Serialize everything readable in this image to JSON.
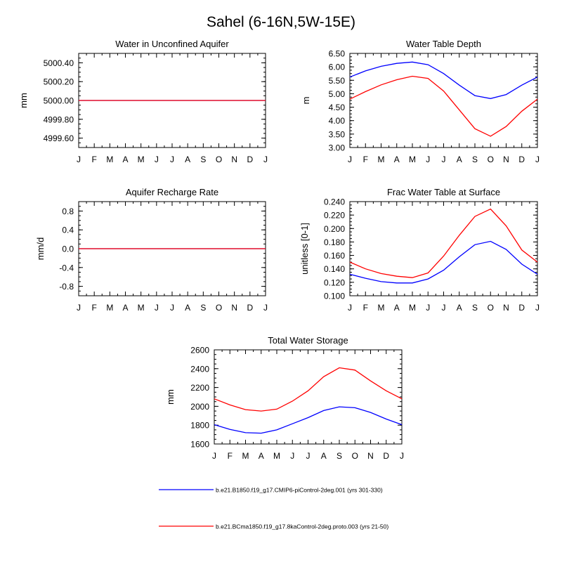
{
  "figure": {
    "title": "Sahel (6-16N,5W-15E)"
  },
  "legend": {
    "placement": "bottom",
    "entries": [
      {
        "label": "b.e21.B1850.f19_g17.CMIP6-piControl-2deg.001 (yrs 301-330)",
        "color": "#0000ff"
      },
      {
        "label": "b.e21.BCma1850.f19_g17.8kaControl-2deg.proto.003 (yrs 21-50)",
        "color": "#ff0000"
      }
    ]
  },
  "chart_data": [
    {
      "type": "line",
      "title": "Water in Unconfined Aquifer",
      "ylabel": "mm",
      "categories": [
        "J",
        "F",
        "M",
        "A",
        "M",
        "J",
        "J",
        "A",
        "S",
        "O",
        "N",
        "D",
        "J"
      ],
      "ylim": [
        4999.5,
        5000.5
      ],
      "yticks": [
        4999.6,
        4999.8,
        5000.0,
        5000.2,
        5000.4
      ],
      "ytick_labels": [
        "4999.60",
        "4999.80",
        "5000.00",
        "5000.20",
        "5000.40"
      ],
      "series": [
        {
          "color": "#0000ff",
          "values": [
            5000,
            5000,
            5000,
            5000,
            5000,
            5000,
            5000,
            5000,
            5000,
            5000,
            5000,
            5000,
            5000
          ]
        },
        {
          "color": "#ff0000",
          "values": [
            5000,
            5000,
            5000,
            5000,
            5000,
            5000,
            5000,
            5000,
            5000,
            5000,
            5000,
            5000,
            5000
          ]
        }
      ]
    },
    {
      "type": "line",
      "title": "Water Table Depth",
      "ylabel": "m",
      "categories": [
        "J",
        "F",
        "M",
        "A",
        "M",
        "J",
        "J",
        "A",
        "S",
        "O",
        "N",
        "D",
        "J"
      ],
      "ylim": [
        3.0,
        6.5
      ],
      "yticks": [
        3.0,
        3.5,
        4.0,
        4.5,
        5.0,
        5.5,
        6.0,
        6.5
      ],
      "ytick_labels": [
        "3.00",
        "3.50",
        "4.00",
        "4.50",
        "5.00",
        "5.50",
        "6.00",
        "6.50"
      ],
      "series": [
        {
          "color": "#0000ff",
          "values": [
            5.62,
            5.85,
            6.02,
            6.13,
            6.18,
            6.08,
            5.75,
            5.32,
            4.93,
            4.82,
            4.97,
            5.32,
            5.62
          ]
        },
        {
          "color": "#ff0000",
          "values": [
            4.8,
            5.08,
            5.33,
            5.52,
            5.65,
            5.57,
            5.1,
            4.4,
            3.7,
            3.42,
            3.78,
            4.35,
            4.8
          ]
        }
      ]
    },
    {
      "type": "line",
      "title": "Aquifer Recharge Rate",
      "ylabel": "mm/d",
      "categories": [
        "J",
        "F",
        "M",
        "A",
        "M",
        "J",
        "J",
        "A",
        "S",
        "O",
        "N",
        "D",
        "J"
      ],
      "ylim": [
        -1.0,
        1.0
      ],
      "yticks": [
        -0.8,
        -0.4,
        0.0,
        0.4,
        0.8
      ],
      "ytick_labels": [
        "-0.8",
        "-0.4",
        "0.0",
        "0.4",
        "0.8"
      ],
      "series": [
        {
          "color": "#0000ff",
          "values": [
            0,
            0,
            0,
            0,
            0,
            0,
            0,
            0,
            0,
            0,
            0,
            0,
            0
          ]
        },
        {
          "color": "#ff0000",
          "values": [
            0,
            0,
            0,
            0,
            0,
            0,
            0,
            0,
            0,
            0,
            0,
            0,
            0
          ]
        }
      ]
    },
    {
      "type": "line",
      "title": "Frac Water Table at Surface",
      "ylabel": "unitless [0-1]",
      "categories": [
        "J",
        "F",
        "M",
        "A",
        "M",
        "J",
        "J",
        "A",
        "S",
        "O",
        "N",
        "D",
        "J"
      ],
      "ylim": [
        0.1,
        0.24
      ],
      "yticks": [
        0.1,
        0.12,
        0.14,
        0.16,
        0.18,
        0.2,
        0.22,
        0.24
      ],
      "ytick_labels": [
        "0.100",
        "0.120",
        "0.140",
        "0.160",
        "0.180",
        "0.200",
        "0.220",
        "0.240"
      ],
      "series": [
        {
          "color": "#0000ff",
          "values": [
            0.132,
            0.126,
            0.121,
            0.119,
            0.119,
            0.125,
            0.138,
            0.158,
            0.176,
            0.181,
            0.169,
            0.147,
            0.132
          ]
        },
        {
          "color": "#ff0000",
          "values": [
            0.15,
            0.14,
            0.133,
            0.129,
            0.127,
            0.134,
            0.159,
            0.19,
            0.218,
            0.229,
            0.204,
            0.168,
            0.15
          ]
        }
      ]
    },
    {
      "type": "line",
      "title": "Total Water Storage",
      "ylabel": "mm",
      "categories": [
        "J",
        "F",
        "M",
        "A",
        "M",
        "J",
        "J",
        "A",
        "S",
        "O",
        "N",
        "D",
        "J"
      ],
      "ylim": [
        1600,
        2600
      ],
      "yticks": [
        1600,
        1800,
        2000,
        2200,
        2400,
        2600
      ],
      "ytick_labels": [
        "1600",
        "1800",
        "2000",
        "2200",
        "2400",
        "2600"
      ],
      "series": [
        {
          "color": "#0000ff",
          "values": [
            1805,
            1755,
            1720,
            1715,
            1750,
            1815,
            1880,
            1955,
            1995,
            1985,
            1935,
            1865,
            1805
          ]
        },
        {
          "color": "#ff0000",
          "values": [
            2080,
            2015,
            1965,
            1950,
            1970,
            2055,
            2165,
            2315,
            2410,
            2385,
            2270,
            2165,
            2080
          ]
        }
      ]
    }
  ]
}
